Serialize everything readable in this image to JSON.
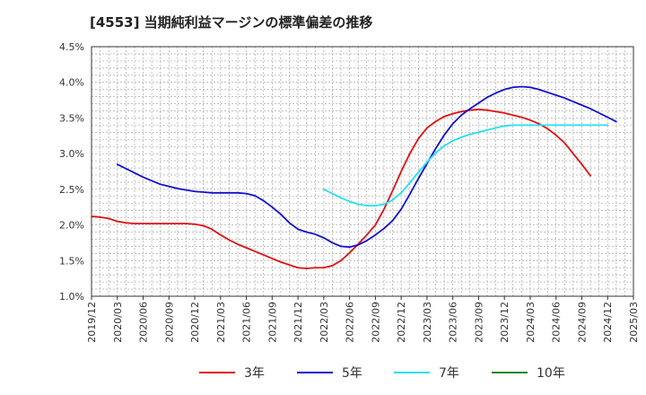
{
  "title": "[4553]  当期純利益マージンの標準偏差の推移",
  "chart_data": {
    "type": "line",
    "ylim": [
      0.01,
      0.045
    ],
    "y_ticks": [
      "1.0%",
      "1.5%",
      "2.0%",
      "2.5%",
      "3.0%",
      "3.5%",
      "4.0%",
      "4.5%"
    ],
    "y_tick_values": [
      0.01,
      0.015,
      0.02,
      0.025,
      0.03,
      0.035,
      0.04,
      0.045
    ],
    "x_ticks": [
      "2019/12",
      "2020/03",
      "2020/06",
      "2020/09",
      "2020/12",
      "2021/03",
      "2021/06",
      "2021/09",
      "2021/12",
      "2022/03",
      "2022/06",
      "2022/09",
      "2022/12",
      "2023/03",
      "2023/06",
      "2023/09",
      "2023/12",
      "2024/03",
      "2024/06",
      "2024/09",
      "2024/12",
      "2025/03"
    ],
    "grid": true,
    "legend_position": "bottom",
    "series": [
      {
        "name": "3年",
        "color": "#dd1111",
        "start": "2019/12",
        "values": [
          0.0212,
          0.0211,
          0.0209,
          0.0205,
          0.0203,
          0.0202,
          0.0202,
          0.0202,
          0.0202,
          0.0202,
          0.0202,
          0.0202,
          0.0201,
          0.0199,
          0.0194,
          0.0186,
          0.0179,
          0.0173,
          0.0168,
          0.0163,
          0.0158,
          0.0153,
          0.0148,
          0.0144,
          0.014,
          0.0139,
          0.014,
          0.014,
          0.0143,
          0.015,
          0.0161,
          0.0173,
          0.0186,
          0.02,
          0.0222,
          0.0248,
          0.0275,
          0.03,
          0.0321,
          0.0336,
          0.0345,
          0.0352,
          0.0356,
          0.0359,
          0.0361,
          0.0362,
          0.0361,
          0.0359,
          0.0357,
          0.0354,
          0.0351,
          0.0347,
          0.0342,
          0.0335,
          0.0326,
          0.0315,
          0.03,
          0.0285,
          0.0269
        ]
      },
      {
        "name": "5年",
        "color": "#1111cc",
        "start": "2020/03",
        "values": [
          0.0285,
          0.0279,
          0.0273,
          0.0267,
          0.0262,
          0.0257,
          0.0254,
          0.0251,
          0.0249,
          0.0247,
          0.0246,
          0.0245,
          0.0245,
          0.0245,
          0.0245,
          0.0244,
          0.0241,
          0.0234,
          0.0225,
          0.0215,
          0.0203,
          0.0194,
          0.019,
          0.0187,
          0.0182,
          0.0175,
          0.017,
          0.0169,
          0.0172,
          0.0178,
          0.0186,
          0.0195,
          0.0206,
          0.0222,
          0.0243,
          0.0265,
          0.0286,
          0.0307,
          0.0326,
          0.0342,
          0.0354,
          0.0363,
          0.0371,
          0.0379,
          0.0385,
          0.039,
          0.0393,
          0.0394,
          0.0393,
          0.039,
          0.0386,
          0.0382,
          0.0378,
          0.0373,
          0.0368,
          0.0363,
          0.0357,
          0.0351,
          0.0345
        ]
      },
      {
        "name": "7年",
        "color": "#22e0ee",
        "start": "2022/03",
        "values": [
          0.025,
          0.0244,
          0.0238,
          0.0233,
          0.0229,
          0.0227,
          0.0227,
          0.0229,
          0.0235,
          0.0245,
          0.0259,
          0.0274,
          0.0288,
          0.0301,
          0.0311,
          0.0318,
          0.0323,
          0.0327,
          0.033,
          0.0333,
          0.0336,
          0.0339,
          0.034,
          0.034,
          0.034,
          0.034,
          0.034,
          0.034,
          0.034,
          0.034,
          0.034,
          0.034,
          0.034,
          0.034
        ]
      },
      {
        "name": "10年",
        "color": "#228822",
        "start": "2024/12",
        "values": []
      }
    ]
  }
}
